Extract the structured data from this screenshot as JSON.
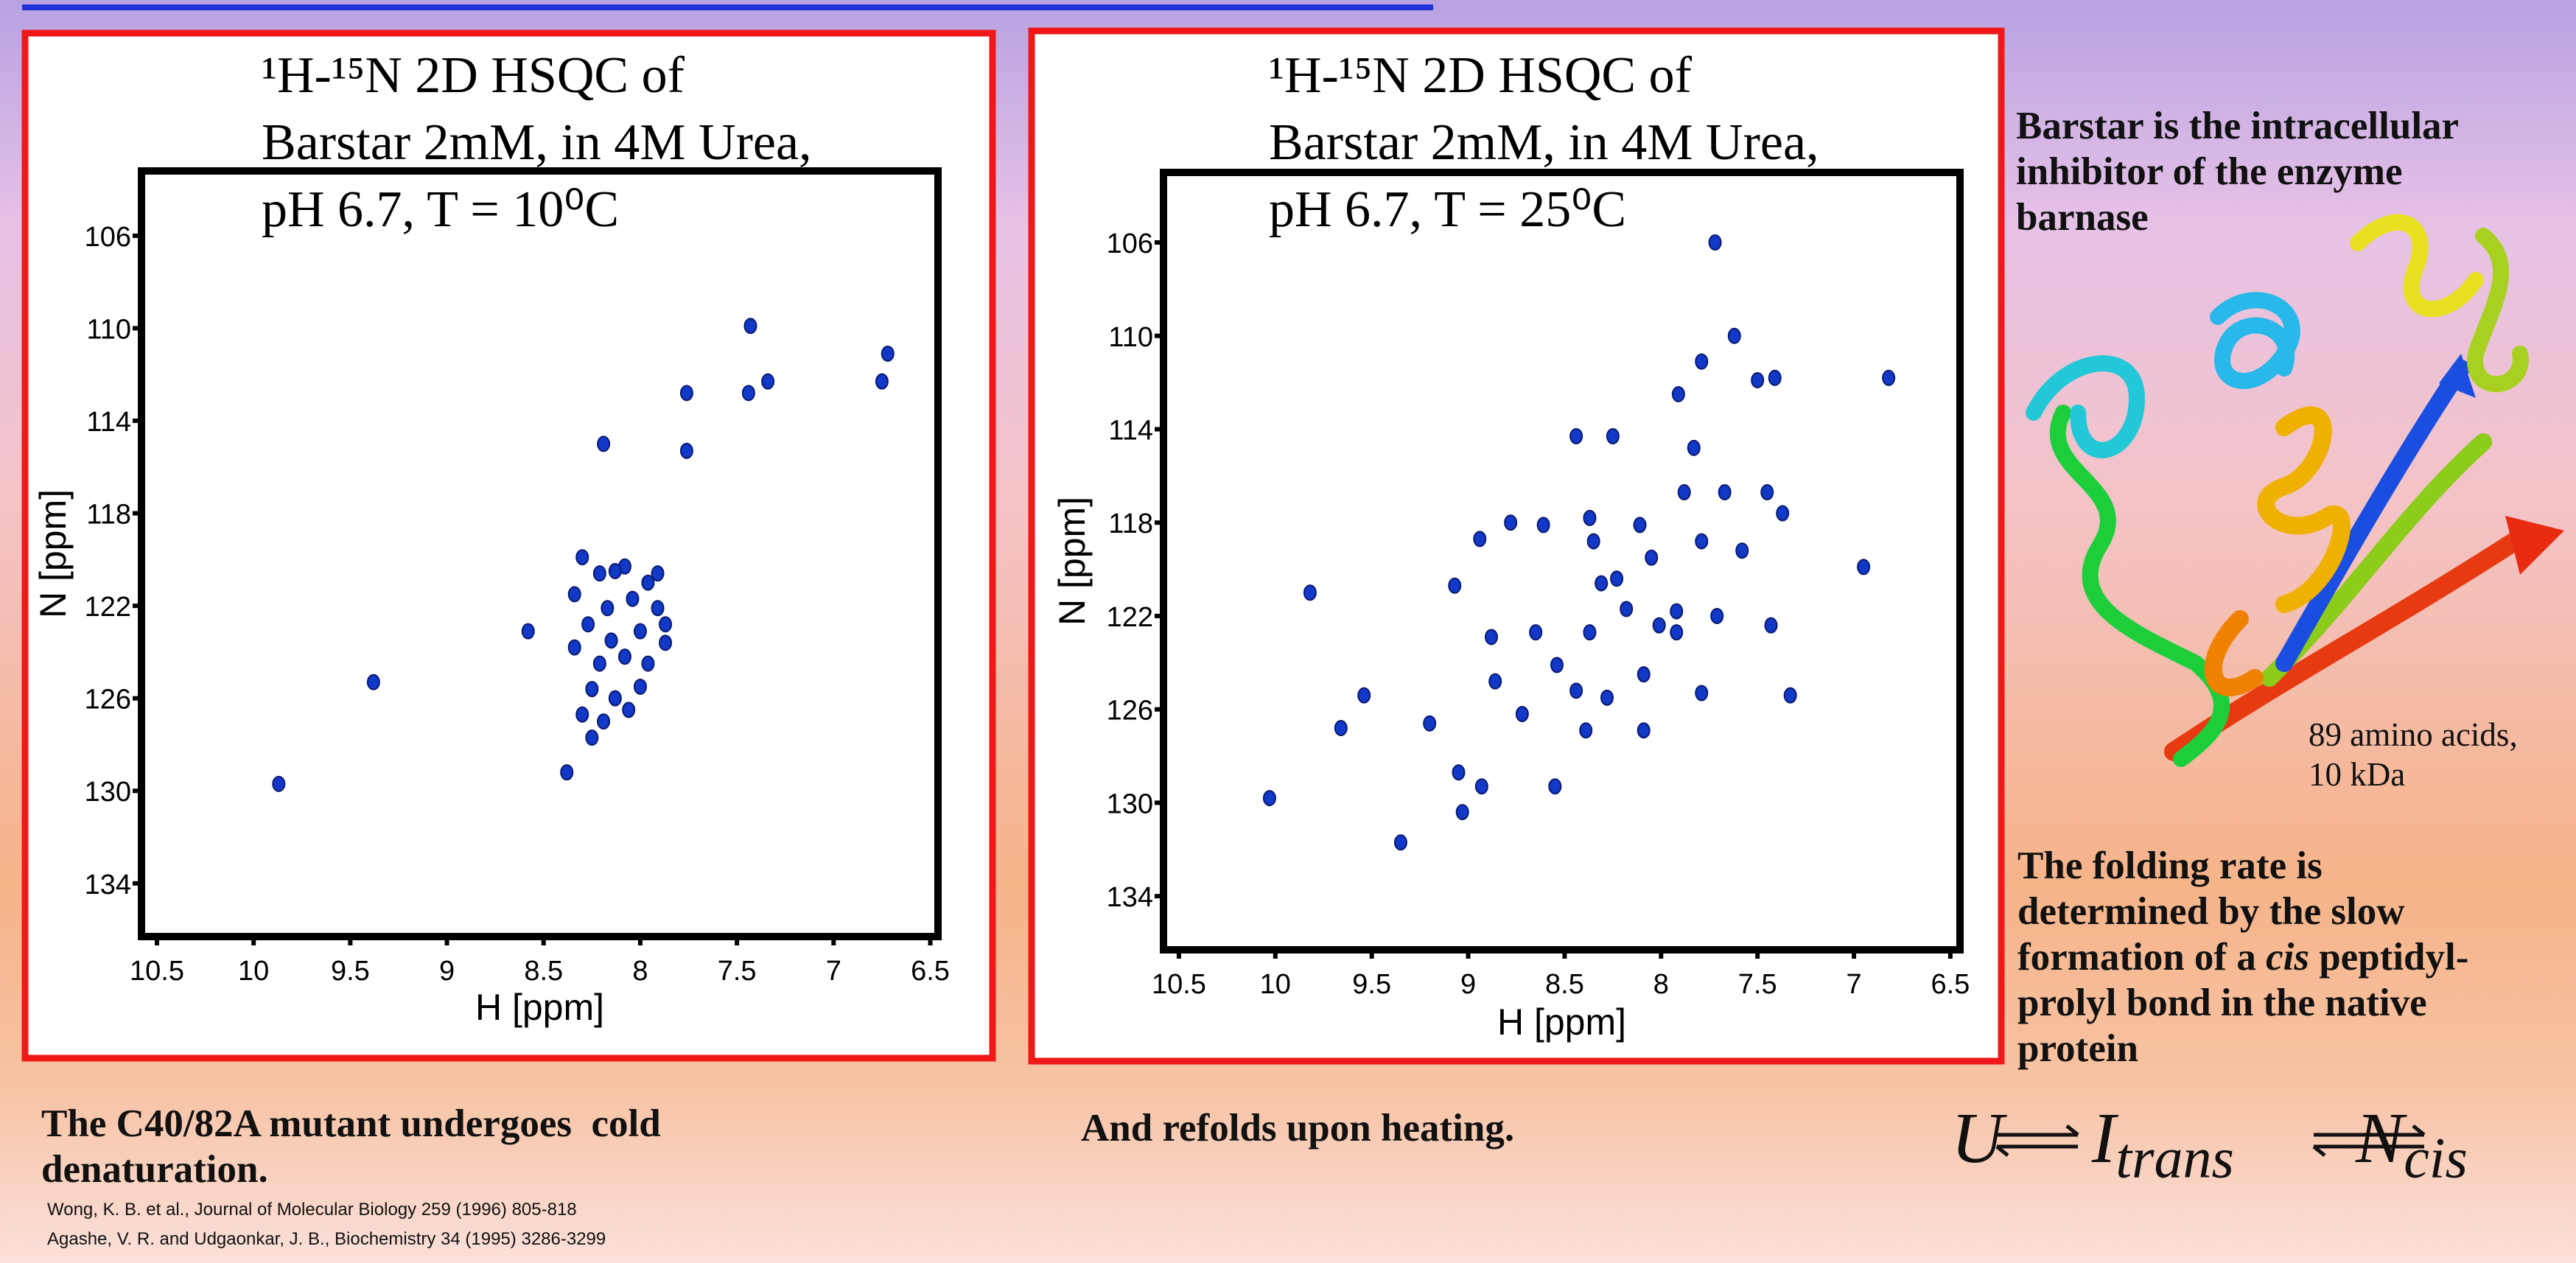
{
  "chart_data": [
    {
      "type": "scatter",
      "title": [
        "¹H-¹⁵N 2D HSQC of",
        "Barstar 2mM, in 4M Urea,",
        "pH 6.7, T = 10⁰C"
      ],
      "x_label": "H [ppm]",
      "y_label": "N [ppm]",
      "xlim": [
        10.58,
        6.46
      ],
      "ylim": [
        136.3,
        103.2
      ],
      "xticks": [
        10.5,
        10,
        9.5,
        9,
        8.5,
        8,
        7.5,
        7,
        6.5
      ],
      "yticks": [
        106,
        110,
        114,
        118,
        122,
        126,
        130,
        134
      ],
      "color": "#1238c8",
      "x": [
        9.87,
        9.38,
        8.38,
        8.58,
        8.19,
        7.76,
        7.76,
        7.43,
        7.44,
        7.34,
        6.75,
        6.72,
        8.3,
        8.21,
        8.08,
        7.96,
        8.34,
        8.17,
        8.04,
        7.91,
        7.87,
        8.27,
        8.15,
        8.0,
        7.87,
        8.34,
        8.21,
        8.08,
        7.96,
        8.25,
        8.13,
        8.0,
        8.3,
        8.19,
        8.06,
        8.25,
        8.13,
        7.91
      ],
      "values": [
        129.7,
        125.3,
        129.2,
        123.1,
        115.0,
        115.3,
        112.8,
        109.9,
        112.8,
        112.3,
        112.3,
        111.1,
        119.9,
        120.6,
        120.3,
        121.0,
        121.5,
        122.1,
        121.7,
        122.1,
        122.8,
        122.8,
        123.5,
        123.1,
        123.6,
        123.8,
        124.5,
        124.2,
        124.5,
        125.6,
        126.0,
        125.5,
        126.7,
        127.0,
        126.5,
        127.7,
        120.5,
        120.6
      ]
    },
    {
      "type": "scatter",
      "title": [
        "¹H-¹⁵N 2D HSQC of",
        "Barstar 2mM, in 4M Urea,",
        "pH 6.7, T = 25⁰C"
      ],
      "x_label": "H [ppm]",
      "y_label": "N [ppm]",
      "xlim": [
        10.58,
        6.45
      ],
      "ylim": [
        136.3,
        103.0
      ],
      "xticks": [
        10.5,
        10,
        9.5,
        9,
        8.5,
        8,
        7.5,
        7,
        6.5
      ],
      "yticks": [
        106,
        110,
        114,
        118,
        122,
        126,
        130,
        134
      ],
      "color": "#1238c8",
      "x": [
        7.72,
        7.62,
        6.82,
        8.25,
        7.83,
        7.91,
        7.5,
        7.41,
        7.79,
        8.44,
        10.03,
        9.82,
        9.66,
        9.54,
        9.35,
        9.05,
        9.03,
        8.93,
        9.07,
        8.94,
        8.88,
        8.78,
        8.61,
        8.72,
        8.65,
        8.54,
        8.55,
        8.37,
        8.35,
        8.31,
        8.23,
        8.18,
        8.37,
        8.11,
        8.05,
        8.01,
        7.92,
        7.92,
        7.88,
        7.79,
        7.71,
        7.67,
        7.58,
        7.45,
        7.37,
        7.43,
        7.33,
        7.79,
        8.09,
        8.44,
        8.28,
        6.95,
        8.86,
        9.2,
        8.39,
        8.09
      ],
      "values": [
        106.0,
        110.0,
        111.8,
        114.3,
        114.8,
        112.5,
        111.9,
        111.8,
        111.1,
        114.3,
        129.8,
        121.0,
        126.8,
        125.4,
        131.7,
        128.7,
        130.4,
        129.3,
        120.7,
        118.7,
        122.9,
        118.0,
        118.1,
        126.2,
        122.7,
        124.1,
        129.3,
        117.8,
        118.8,
        120.6,
        120.4,
        121.7,
        122.7,
        118.1,
        119.5,
        122.4,
        121.8,
        122.7,
        116.7,
        118.8,
        122.0,
        116.7,
        119.2,
        116.7,
        117.6,
        122.4,
        125.4,
        125.3,
        124.5,
        125.2,
        125.5,
        119.9,
        124.8,
        126.6,
        126.9,
        126.9
      ]
    }
  ],
  "captions": {
    "left": [
      "The C40/82A mutant undergoes  cold",
      "denaturation."
    ],
    "right": "And refolds upon heating."
  },
  "references": [
    "Wong, K. B. et al., Journal of Molecular Biology 259 (1996) 805-818",
    "Agashe, V. R. and Udgaonkar, J. B., Biochemistry 34 (1995) 3286-3299"
  ],
  "side": {
    "description": [
      "Barstar is the intracellular",
      "inhibitor of the enzyme",
      "barnase"
    ],
    "protein_info": [
      "89 amino acids,",
      "10 kDa"
    ],
    "folding": [
      "The folding rate is",
      "determined by the slow",
      "formation of a ",
      "cis",
      " peptidyl-",
      "prolyl bond in the native",
      "protein"
    ],
    "equation": {
      "u": "U",
      "i": "I",
      "i_sub": "trans",
      "n": "N",
      "n_sub": "cis"
    }
  }
}
